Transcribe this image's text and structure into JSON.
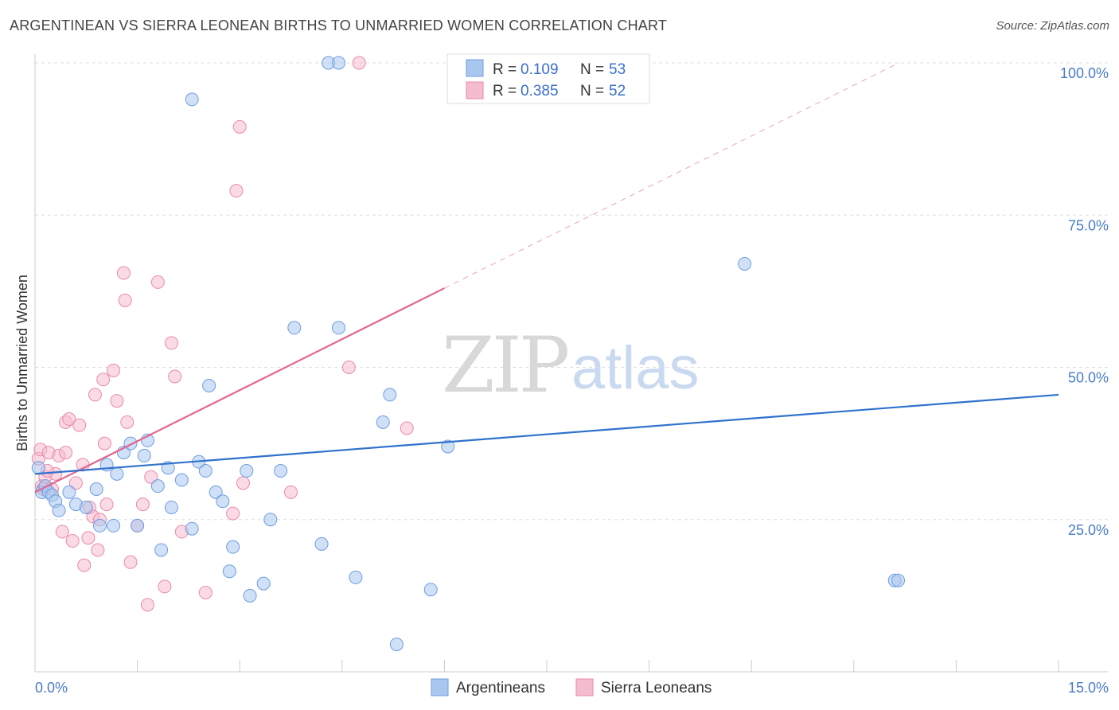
{
  "title": "ARGENTINEAN VS SIERRA LEONEAN BIRTHS TO UNMARRIED WOMEN CORRELATION CHART",
  "source": "Source: ZipAtlas.com",
  "watermark": {
    "zip": "ZIP",
    "atlas": "atlas"
  },
  "legend": {
    "items": [
      {
        "r_label": "R =",
        "r_value": "0.109",
        "n_label": "N =",
        "n_value": "53"
      },
      {
        "r_label": "R =",
        "r_value": "0.385",
        "n_label": "N =",
        "n_value": "52"
      }
    ]
  },
  "colors": {
    "blue_fill": "#a9c6ee",
    "blue_stroke": "#6d9ee0",
    "blue_line": "#2f72cc",
    "pink_fill": "#f5bcd0",
    "pink_stroke": "#e98aab",
    "pink_line": "#e0658f",
    "grid": "#dddddd",
    "axis_label": "#4a7cc8"
  },
  "chart_data": {
    "type": "scatter",
    "title": "ARGENTINEAN VS SIERRA LEONEAN BIRTHS TO UNMARRIED WOMEN CORRELATION CHART",
    "xlabel": "",
    "ylabel": "Births to Unmarried Women",
    "xlim": [
      0,
      15
    ],
    "ylim": [
      0,
      102
    ],
    "x_tick_labels": [
      "0.0%",
      "15.0%"
    ],
    "y_ticks": [
      25,
      50,
      75,
      100
    ],
    "y_tick_labels": [
      "25.0%",
      "50.0%",
      "75.0%",
      "100.0%"
    ],
    "grid": true,
    "legend_position": "top-center",
    "series": [
      {
        "name": "Argentineans",
        "color": "#a9c6ee",
        "r": 0.109,
        "n": 53,
        "trend": {
          "x": [
            0,
            15
          ],
          "y": [
            32.5,
            45.5
          ]
        },
        "points": [
          [
            0.1,
            29.5
          ],
          [
            0.15,
            30.5
          ],
          [
            0.2,
            29.5
          ],
          [
            0.25,
            29.0
          ],
          [
            0.3,
            28.0
          ],
          [
            0.35,
            26.5
          ],
          [
            0.5,
            29.5
          ],
          [
            0.6,
            27.5
          ],
          [
            0.75,
            27.0
          ],
          [
            0.9,
            30.0
          ],
          [
            0.95,
            24.0
          ],
          [
            1.05,
            34.0
          ],
          [
            1.15,
            24.0
          ],
          [
            1.2,
            32.5
          ],
          [
            1.3,
            36.0
          ],
          [
            1.4,
            37.5
          ],
          [
            1.5,
            24.0
          ],
          [
            1.6,
            35.5
          ],
          [
            1.65,
            38.0
          ],
          [
            1.8,
            30.5
          ],
          [
            1.85,
            20.0
          ],
          [
            1.95,
            33.5
          ],
          [
            2.0,
            27.0
          ],
          [
            2.15,
            31.5
          ],
          [
            2.3,
            23.5
          ],
          [
            2.3,
            94.0
          ],
          [
            2.4,
            34.5
          ],
          [
            2.5,
            33.0
          ],
          [
            2.55,
            47.0
          ],
          [
            2.65,
            29.5
          ],
          [
            2.75,
            28.0
          ],
          [
            2.85,
            16.5
          ],
          [
            2.9,
            20.5
          ],
          [
            3.1,
            33.0
          ],
          [
            3.15,
            12.5
          ],
          [
            3.35,
            14.5
          ],
          [
            3.45,
            25.0
          ],
          [
            3.6,
            33.0
          ],
          [
            3.8,
            56.5
          ],
          [
            4.2,
            21.0
          ],
          [
            4.3,
            100.0
          ],
          [
            4.45,
            56.5
          ],
          [
            4.45,
            100.0
          ],
          [
            4.7,
            15.5
          ],
          [
            5.1,
            41.0
          ],
          [
            5.2,
            45.5
          ],
          [
            5.3,
            4.5
          ],
          [
            5.8,
            13.5
          ],
          [
            6.05,
            37.0
          ],
          [
            10.4,
            67.0
          ],
          [
            12.6,
            15.0
          ],
          [
            12.65,
            15.0
          ],
          [
            0.05,
            33.5
          ]
        ]
      },
      {
        "name": "Sierra Leoneans",
        "color": "#f5bcd0",
        "r": 0.385,
        "n": 52,
        "trend": {
          "x": [
            0,
            6.0
          ],
          "y": [
            29.5,
            63.0
          ]
        },
        "trend_ext": {
          "x": [
            6.0,
            15
          ],
          "y": [
            63.0,
            113.0
          ]
        },
        "points": [
          [
            0.05,
            35.0
          ],
          [
            0.08,
            36.5
          ],
          [
            0.1,
            30.5
          ],
          [
            0.15,
            32.0
          ],
          [
            0.2,
            36.0
          ],
          [
            0.25,
            30.0
          ],
          [
            0.3,
            32.5
          ],
          [
            0.35,
            35.5
          ],
          [
            0.4,
            23.0
          ],
          [
            0.45,
            36.0
          ],
          [
            0.45,
            41.0
          ],
          [
            0.5,
            41.5
          ],
          [
            0.55,
            21.5
          ],
          [
            0.6,
            31.0
          ],
          [
            0.65,
            40.5
          ],
          [
            0.7,
            34.0
          ],
          [
            0.72,
            17.5
          ],
          [
            0.78,
            22.0
          ],
          [
            0.8,
            27.0
          ],
          [
            0.85,
            25.5
          ],
          [
            0.88,
            45.5
          ],
          [
            0.92,
            20.0
          ],
          [
            0.95,
            25.0
          ],
          [
            1.0,
            48.0
          ],
          [
            1.02,
            37.5
          ],
          [
            1.05,
            27.5
          ],
          [
            1.15,
            49.5
          ],
          [
            1.2,
            44.5
          ],
          [
            1.3,
            65.5
          ],
          [
            1.32,
            61.0
          ],
          [
            1.35,
            41.0
          ],
          [
            1.4,
            18.0
          ],
          [
            1.5,
            24.0
          ],
          [
            1.58,
            27.5
          ],
          [
            1.65,
            11.0
          ],
          [
            1.7,
            32.0
          ],
          [
            1.8,
            64.0
          ],
          [
            1.9,
            14.0
          ],
          [
            2.0,
            54.0
          ],
          [
            2.05,
            48.5
          ],
          [
            2.15,
            23.0
          ],
          [
            2.5,
            13.0
          ],
          [
            2.9,
            26.0
          ],
          [
            2.95,
            79.0
          ],
          [
            3.0,
            89.5
          ],
          [
            3.05,
            31.0
          ],
          [
            3.75,
            29.5
          ],
          [
            4.6,
            50.0
          ],
          [
            4.75,
            100.0
          ],
          [
            5.45,
            40.0
          ],
          [
            0.12,
            30.0
          ],
          [
            0.18,
            33.0
          ]
        ]
      }
    ]
  },
  "bottom_legend": [
    {
      "label": "Argentineans"
    },
    {
      "label": "Sierra Leoneans"
    }
  ]
}
